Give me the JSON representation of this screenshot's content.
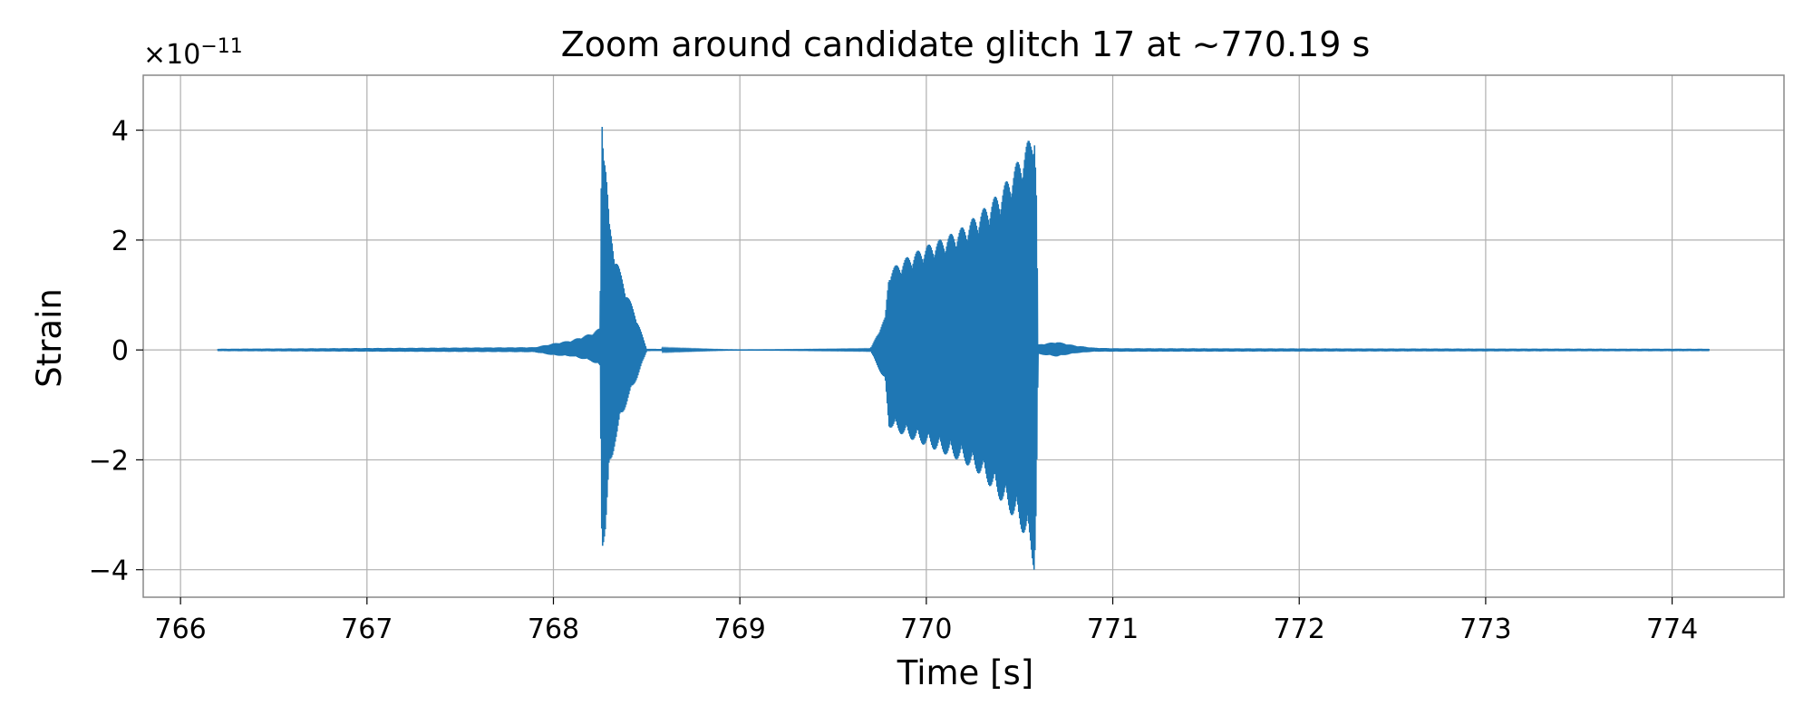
{
  "chart_data": {
    "type": "line",
    "title": "Zoom around candidate glitch 17 at ~770.19 s",
    "xlabel": "Time [s]",
    "ylabel": "Strain",
    "y_scale_factor": "×10−11",
    "xlim": [
      765.8,
      774.6
    ],
    "ylim": [
      -4.5,
      5.0
    ],
    "x_ticks": [
      766,
      767,
      768,
      769,
      770,
      771,
      772,
      773,
      774
    ],
    "x_tick_labels": [
      "766",
      "767",
      "768",
      "769",
      "770",
      "771",
      "772",
      "773",
      "774"
    ],
    "y_ticks": [
      -4,
      -2,
      0,
      2,
      4
    ],
    "y_tick_labels": [
      "−4",
      "−2",
      "0",
      "2",
      "4"
    ],
    "grid": true,
    "color": "#1f77b4",
    "series": [
      {
        "x_start": 766.2,
        "x_end": 774.2,
        "envelope": {
          "x": [
            766.2,
            767.9,
            768.0,
            768.1,
            768.2,
            768.25,
            768.26,
            768.28,
            768.3,
            768.33,
            768.36,
            768.4,
            768.45,
            768.5,
            769.0,
            769.7,
            769.78,
            769.8,
            769.9,
            770.0,
            770.1,
            770.2,
            770.3,
            770.4,
            770.5,
            770.56,
            770.58,
            770.59,
            770.6,
            770.7,
            770.8,
            770.9,
            771.0,
            774.2
          ],
          "upper": [
            0.02,
            0.05,
            0.12,
            0.18,
            0.3,
            0.4,
            4.55,
            3.5,
            2.3,
            1.8,
            1.4,
            1.0,
            0.55,
            0.02,
            0.0,
            0.01,
            0.6,
            1.45,
            1.7,
            1.9,
            2.05,
            2.25,
            2.55,
            2.9,
            3.5,
            3.9,
            4.2,
            3.0,
            0.1,
            0.15,
            0.08,
            0.04,
            0.03,
            0.02
          ],
          "lower": [
            -0.02,
            -0.04,
            -0.1,
            -0.12,
            -0.2,
            -0.3,
            -3.65,
            -3.3,
            -2.3,
            -1.7,
            -1.3,
            -0.9,
            -0.5,
            -0.02,
            0.0,
            -0.01,
            -0.6,
            -1.4,
            -1.6,
            -1.75,
            -1.9,
            -2.05,
            -2.3,
            -2.75,
            -3.2,
            -3.65,
            -4.05,
            -2.9,
            -0.08,
            -0.12,
            -0.06,
            -0.03,
            -0.03,
            -0.02
          ]
        }
      }
    ]
  }
}
